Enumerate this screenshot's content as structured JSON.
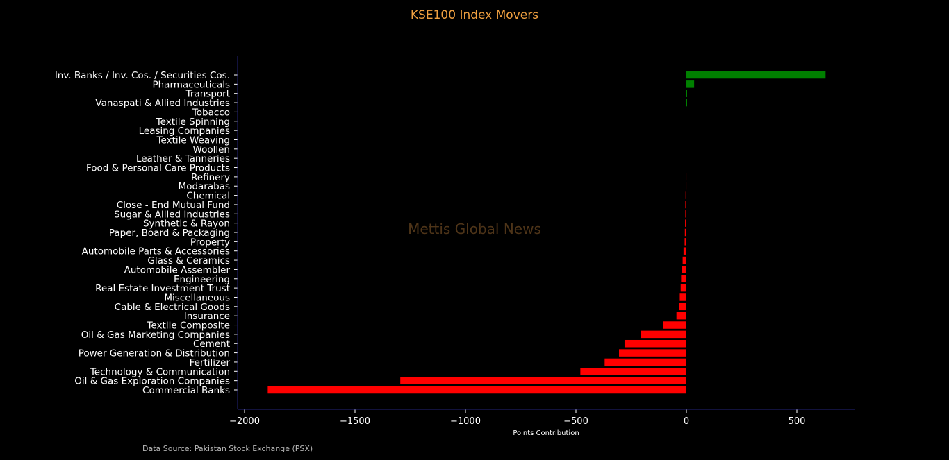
{
  "chart_data": {
    "type": "bar",
    "orientation": "horizontal",
    "title": "KSE100 Index Movers",
    "xlabel": "Points Contribution",
    "ylabel": "",
    "xlim": [
      -2030,
      750
    ],
    "xticks": [
      -2000,
      -1500,
      -1000,
      -500,
      0,
      500
    ],
    "xtick_labels": [
      "−2000",
      "−1500",
      "−1000",
      "−500",
      "0",
      "500"
    ],
    "grid": false,
    "categories": [
      "Inv. Banks / Inv. Cos. / Securities Cos.",
      "Pharmaceuticals",
      "Transport",
      "Vanaspati & Allied Industries",
      "Tobacco",
      "Textile Spinning",
      "Leasing Companies",
      "Textile Weaving",
      "Woollen",
      "Leather & Tanneries",
      "Food & Personal Care Products",
      "Refinery",
      "Modarabas",
      "Chemical",
      "Close - End Mutual Fund",
      "Sugar & Allied Industries",
      "Synthetic & Rayon",
      "Paper, Board & Packaging",
      "Property",
      "Automobile Parts & Accessories",
      "Glass & Ceramics",
      "Automobile Assembler",
      "Engineering",
      "Real Estate Investment Trust",
      "Miscellaneous",
      "Cable & Electrical Goods",
      "Insurance",
      "Textile Composite",
      "Oil & Gas Marketing Companies",
      "Cement",
      "Power Generation & Distribution",
      "Fertilizer",
      "Technology & Communication",
      "Oil & Gas Exploration Companies",
      "Commercial Banks"
    ],
    "values": [
      630,
      35,
      3,
      2,
      0,
      0,
      0,
      0,
      0,
      0,
      0,
      -3,
      -3,
      -4,
      -5,
      -5,
      -6,
      -7,
      -8,
      -13,
      -17,
      -22,
      -24,
      -26,
      -30,
      -33,
      -45,
      -105,
      -205,
      -280,
      -305,
      -370,
      -480,
      -1295,
      -1895
    ],
    "colors": {
      "positive": "#008000",
      "negative": "#ff0000"
    }
  },
  "annotations": {
    "watermark": "Mettis Global News",
    "source": "Data Source: Pakistan Stock Exchange (PSX)"
  }
}
